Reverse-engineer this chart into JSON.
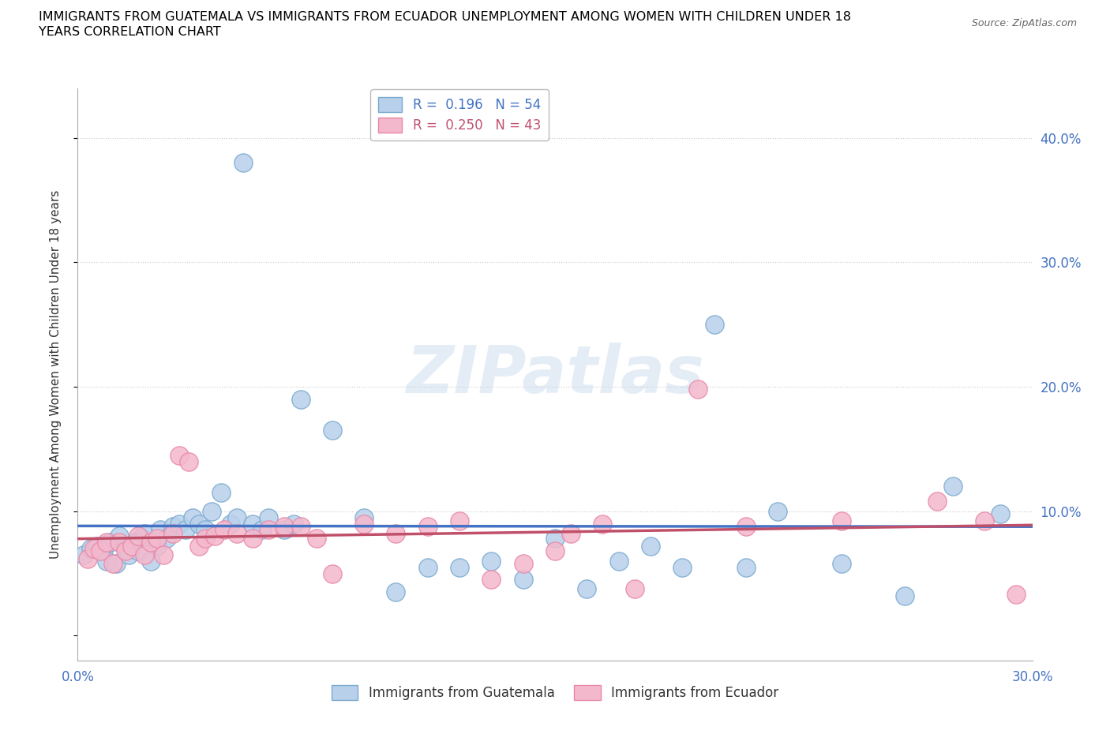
{
  "title_line1": "IMMIGRANTS FROM GUATEMALA VS IMMIGRANTS FROM ECUADOR UNEMPLOYMENT AMONG WOMEN WITH CHILDREN UNDER 18",
  "title_line2": "YEARS CORRELATION CHART",
  "source": "Source: ZipAtlas.com",
  "ylabel": "Unemployment Among Women with Children Under 18 years",
  "xlim": [
    0.0,
    0.3
  ],
  "ylim": [
    -0.02,
    0.44
  ],
  "xticks": [
    0.0,
    0.05,
    0.1,
    0.15,
    0.2,
    0.25,
    0.3
  ],
  "xtick_labels": [
    "0.0%",
    "",
    "",
    "",
    "",
    "",
    "30.0%"
  ],
  "ytick_positions": [
    0.0,
    0.1,
    0.2,
    0.3,
    0.4
  ],
  "ytick_labels": [
    "",
    "10.0%",
    "20.0%",
    "30.0%",
    "40.0%"
  ],
  "guatemala_fill": "#b8d0ea",
  "ecuador_fill": "#f4b8cc",
  "guatemala_edge": "#7aaad0",
  "ecuador_edge": "#e888a8",
  "guatemala_line_color": "#4472c4",
  "ecuador_line_color": "#c0506a",
  "legend_R_guatemala": "R =  0.196",
  "legend_N_guatemala": "N = 54",
  "legend_R_ecuador": "R =  0.250",
  "legend_N_ecuador": "N = 43",
  "legend_color_guatemala": "#4472c4",
  "legend_color_ecuador": "#c05070",
  "watermark": "ZIPatlas",
  "guatemala_x": [
    0.002,
    0.004,
    0.006,
    0.008,
    0.009,
    0.01,
    0.012,
    0.013,
    0.015,
    0.016,
    0.018,
    0.019,
    0.02,
    0.021,
    0.023,
    0.025,
    0.026,
    0.028,
    0.03,
    0.032,
    0.034,
    0.036,
    0.038,
    0.04,
    0.042,
    0.045,
    0.048,
    0.05,
    0.052,
    0.055,
    0.058,
    0.06,
    0.065,
    0.068,
    0.07,
    0.08,
    0.09,
    0.1,
    0.11,
    0.12,
    0.13,
    0.14,
    0.15,
    0.16,
    0.17,
    0.18,
    0.19,
    0.2,
    0.21,
    0.22,
    0.24,
    0.26,
    0.275,
    0.29
  ],
  "guatemala_y": [
    0.065,
    0.07,
    0.072,
    0.068,
    0.06,
    0.075,
    0.058,
    0.08,
    0.07,
    0.065,
    0.075,
    0.068,
    0.078,
    0.082,
    0.06,
    0.072,
    0.085,
    0.078,
    0.088,
    0.09,
    0.085,
    0.095,
    0.09,
    0.085,
    0.1,
    0.115,
    0.09,
    0.095,
    0.38,
    0.09,
    0.085,
    0.095,
    0.085,
    0.09,
    0.19,
    0.165,
    0.095,
    0.035,
    0.055,
    0.055,
    0.06,
    0.045,
    0.078,
    0.038,
    0.06,
    0.072,
    0.055,
    0.25,
    0.055,
    0.1,
    0.058,
    0.032,
    0.12,
    0.098
  ],
  "ecuador_x": [
    0.003,
    0.005,
    0.007,
    0.009,
    0.011,
    0.013,
    0.015,
    0.017,
    0.019,
    0.021,
    0.023,
    0.025,
    0.027,
    0.03,
    0.032,
    0.035,
    0.038,
    0.04,
    0.043,
    0.046,
    0.05,
    0.055,
    0.06,
    0.065,
    0.07,
    0.075,
    0.08,
    0.09,
    0.1,
    0.11,
    0.12,
    0.13,
    0.14,
    0.15,
    0.155,
    0.165,
    0.175,
    0.195,
    0.21,
    0.24,
    0.27,
    0.285,
    0.295
  ],
  "ecuador_y": [
    0.062,
    0.07,
    0.068,
    0.075,
    0.058,
    0.075,
    0.068,
    0.072,
    0.08,
    0.065,
    0.075,
    0.078,
    0.065,
    0.082,
    0.145,
    0.14,
    0.072,
    0.078,
    0.08,
    0.085,
    0.082,
    0.078,
    0.085,
    0.088,
    0.088,
    0.078,
    0.05,
    0.09,
    0.082,
    0.088,
    0.092,
    0.045,
    0.058,
    0.068,
    0.082,
    0.09,
    0.038,
    0.198,
    0.088,
    0.092,
    0.108,
    0.092,
    0.033
  ]
}
